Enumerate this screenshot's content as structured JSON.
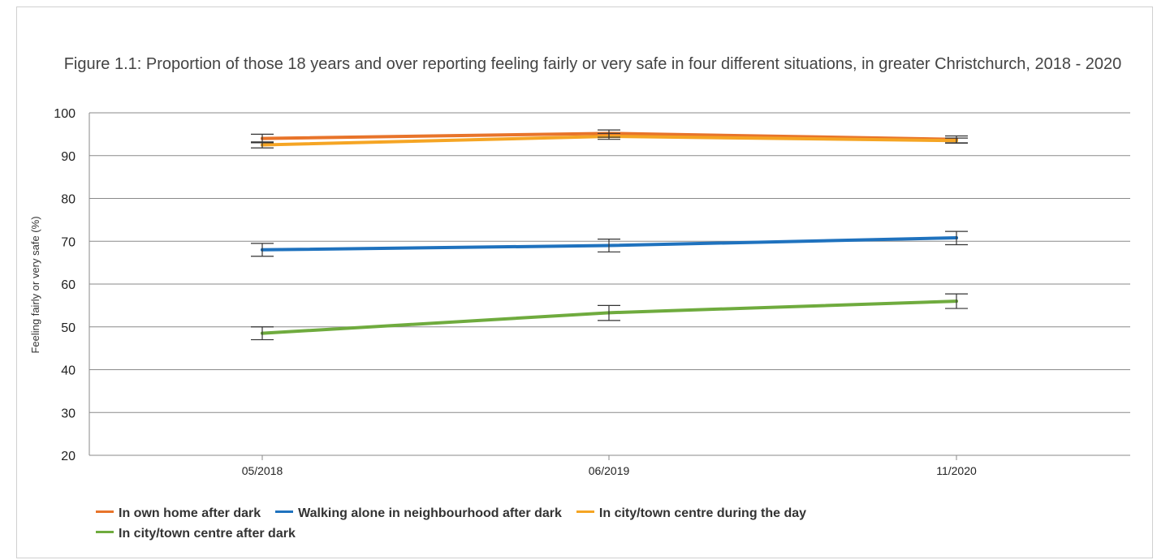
{
  "chart_data": {
    "type": "line",
    "title": "Figure 1.1: Proportion of those 18 years and over reporting feeling fairly or very safe in four different situations, in greater Christchurch, 2018 - 2020",
    "xlabel": "",
    "ylabel": "Feeling fairly or very safe (%)",
    "categories": [
      "05/2018",
      "06/2019",
      "11/2020"
    ],
    "ylim": [
      20,
      100
    ],
    "yticks": [
      20,
      30,
      40,
      50,
      60,
      70,
      80,
      90,
      100
    ],
    "grid": true,
    "legend_position": "bottom",
    "series": [
      {
        "name": "In own home after dark",
        "color": "#e8742a",
        "values": [
          94.0,
          95.2,
          93.8
        ],
        "error": [
          [
            93.0,
            95.0
          ],
          [
            94.3,
            96.0
          ],
          [
            93.0,
            94.6
          ]
        ]
      },
      {
        "name": "Walking alone in neighbourhood after dark",
        "color": "#1f72be",
        "values": [
          68.0,
          69.0,
          70.8
        ],
        "error": [
          [
            66.5,
            69.5
          ],
          [
            67.5,
            70.5
          ],
          [
            69.2,
            72.3
          ]
        ]
      },
      {
        "name": "In city/town centre during the day",
        "color": "#f5a524",
        "values": [
          92.5,
          94.5,
          93.5
        ],
        "error": [
          [
            91.8,
            93.2
          ],
          [
            93.8,
            95.2
          ],
          [
            92.9,
            94.1
          ]
        ]
      },
      {
        "name": "In city/town centre after dark",
        "color": "#6fab3e",
        "values": [
          48.5,
          53.3,
          56.0
        ],
        "error": [
          [
            47.0,
            50.0
          ],
          [
            51.5,
            55.0
          ],
          [
            54.3,
            57.7
          ]
        ]
      }
    ]
  }
}
